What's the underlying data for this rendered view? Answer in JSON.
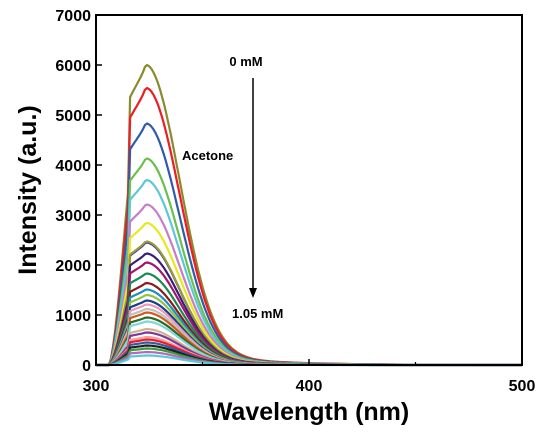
{
  "chart_data": {
    "type": "line",
    "title": "",
    "xlabel": "Wavelength (nm)",
    "ylabel": "Intensity (a.u.)",
    "xlim": [
      300,
      500
    ],
    "ylim": [
      0,
      7000
    ],
    "x_ticks": [
      "300",
      "400",
      "500"
    ],
    "y_ticks": [
      "0",
      "1000",
      "2000",
      "3000",
      "4000",
      "5000",
      "6000",
      "7000"
    ],
    "grid": false,
    "legend": "none",
    "annotations": {
      "top": "0 mM",
      "middle": "Acetone",
      "bottom": "1.05 mM"
    },
    "peak_wavelength": 324,
    "series": [
      {
        "color": "#8a8a2e",
        "peak": 6000
      },
      {
        "color": "#ee1c24",
        "peak": 5540
      },
      {
        "color": "#2e5ca8",
        "peak": 4830
      },
      {
        "color": "#6cbf4a",
        "peak": 4130
      },
      {
        "color": "#5ec6d9",
        "peak": 3700
      },
      {
        "color": "#c77dc7",
        "peak": 3210
      },
      {
        "color": "#e8e81e",
        "peak": 2840
      },
      {
        "color": "#2a2ab8",
        "peak": 2450
      },
      {
        "color": "#9b9b34",
        "peak": 2470
      },
      {
        "color": "#3a1f7a",
        "peak": 2230
      },
      {
        "color": "#a0156e",
        "peak": 2050
      },
      {
        "color": "#1a8a50",
        "peak": 1830
      },
      {
        "color": "#8b1a1a",
        "peak": 1640
      },
      {
        "color": "#1c8ec4",
        "peak": 1510
      },
      {
        "color": "#8ec440",
        "peak": 1400
      },
      {
        "color": "#1b3c8c",
        "peak": 1290
      },
      {
        "color": "#e89ab8",
        "peak": 1210
      },
      {
        "color": "#c0c0c0",
        "peak": 1120
      },
      {
        "color": "#d45a1a",
        "peak": 1050
      },
      {
        "color": "#2a6a2a",
        "peak": 950
      },
      {
        "color": "#7fd6d6",
        "peak": 870
      },
      {
        "color": "#d2b48c",
        "peak": 720
      },
      {
        "color": "#7a3a9a",
        "peak": 650
      },
      {
        "color": "#f4a0a0",
        "peak": 560
      },
      {
        "color": "#ee1c24",
        "peak": 510
      },
      {
        "color": "#2e5ca8",
        "peak": 450
      },
      {
        "color": "#1f1f1f",
        "peak": 390
      },
      {
        "color": "#3a9a3a",
        "peak": 330
      },
      {
        "color": "#b06abf",
        "peak": 260
      },
      {
        "color": "#5ec6d9",
        "peak": 190
      }
    ]
  }
}
